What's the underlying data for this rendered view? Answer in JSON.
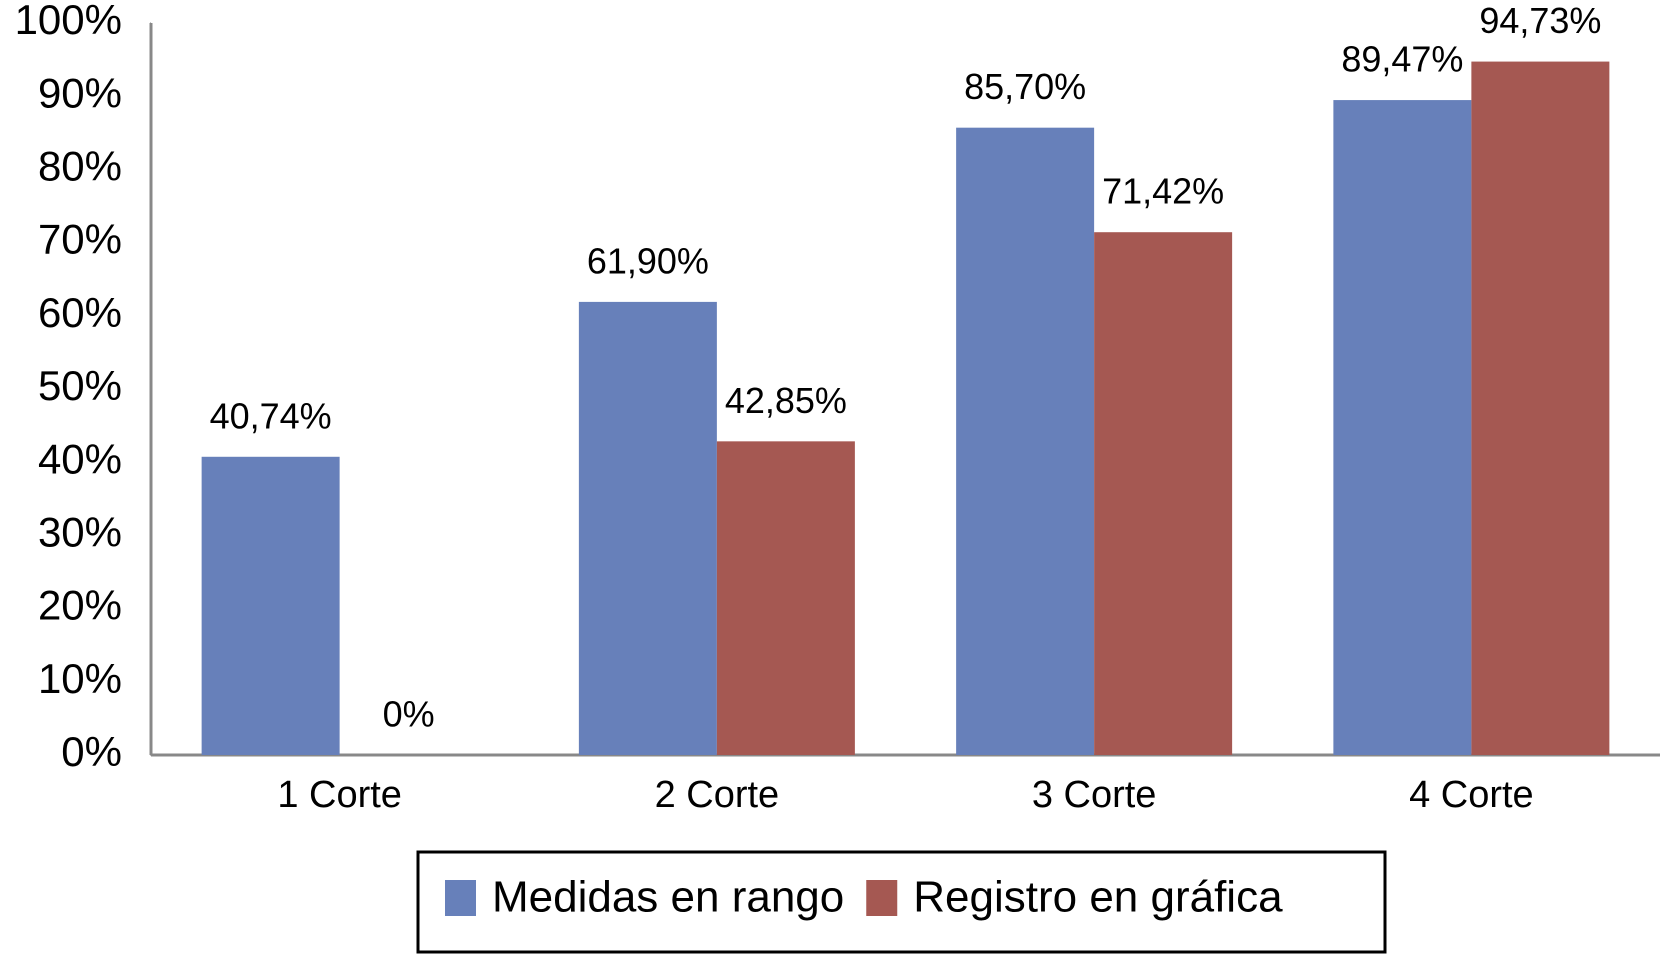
{
  "chart_data": {
    "type": "bar",
    "categories": [
      "1 Corte",
      "2 Corte",
      "3 Corte",
      "4 Corte"
    ],
    "series": [
      {
        "name": "Medidas en rango",
        "color": "#6780ba",
        "values": [
          40.74,
          61.9,
          85.7,
          89.47
        ],
        "value_labels": [
          "40,74%",
          "61,90%",
          "85,70%",
          "89,47%"
        ]
      },
      {
        "name": "Registro en gráfica",
        "color": "#a55852",
        "values": [
          0,
          42.85,
          71.42,
          94.73
        ],
        "value_labels": [
          "0%",
          "42,85%",
          "71,42%",
          "94,73%"
        ]
      }
    ],
    "ylim": [
      0,
      100
    ],
    "yticks": [
      {
        "value": 0,
        "label": "0%"
      },
      {
        "value": 10,
        "label": "10%"
      },
      {
        "value": 20,
        "label": "20%"
      },
      {
        "value": 30,
        "label": "30%"
      },
      {
        "value": 40,
        "label": "40%"
      },
      {
        "value": 50,
        "label": "50%"
      },
      {
        "value": 60,
        "label": "60%"
      },
      {
        "value": 70,
        "label": "70%"
      },
      {
        "value": 80,
        "label": "80%"
      },
      {
        "value": 90,
        "label": "90%"
      },
      {
        "value": 100,
        "label": "100%"
      }
    ],
    "grid": false,
    "legend": "bottom"
  }
}
